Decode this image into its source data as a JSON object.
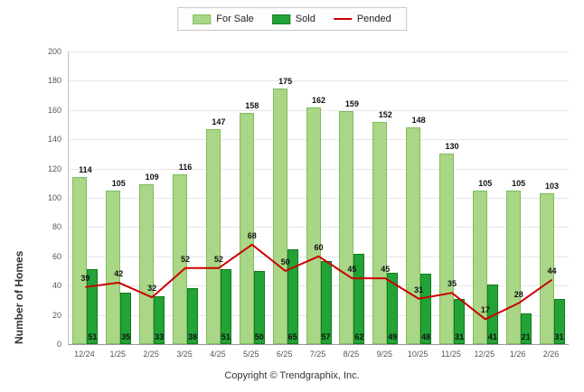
{
  "legend": {
    "for_sale": "For Sale",
    "sold": "Sold",
    "pended": "Pended"
  },
  "footer": "Copyright © Trendgraphix, Inc.",
  "colors": {
    "for_sale": "#A9D687",
    "for_sale_border": "#7FBD5C",
    "sold": "#22A337",
    "sold_border": "#14791F",
    "pended": "#CC0000",
    "grid": "#E6E6E6",
    "tick_text": "#555555",
    "label_text": "#111111"
  },
  "chart_data": {
    "type": "bar",
    "title": "",
    "xlabel": "",
    "ylabel": "Number of Homes",
    "ylim": [
      0,
      200
    ],
    "ytick_step": 20,
    "grid": true,
    "legend_position": "top",
    "categories": [
      "12/24",
      "1/25",
      "2/25",
      "3/25",
      "4/25",
      "5/25",
      "6/25",
      "7/25",
      "8/25",
      "9/25",
      "10/25",
      "11/25",
      "12/25",
      "1/26",
      "2/26"
    ],
    "series": [
      {
        "name": "For Sale",
        "type": "bar",
        "values": [
          114,
          105,
          109,
          116,
          147,
          158,
          175,
          162,
          159,
          152,
          148,
          130,
          105,
          105,
          103
        ]
      },
      {
        "name": "Sold",
        "type": "bar",
        "values": [
          51,
          35,
          33,
          38,
          51,
          50,
          65,
          57,
          62,
          49,
          48,
          31,
          41,
          21,
          31
        ]
      },
      {
        "name": "Pended",
        "type": "line",
        "values": [
          39,
          42,
          32,
          52,
          52,
          68,
          50,
          60,
          45,
          45,
          31,
          35,
          17,
          28,
          44
        ]
      }
    ]
  }
}
